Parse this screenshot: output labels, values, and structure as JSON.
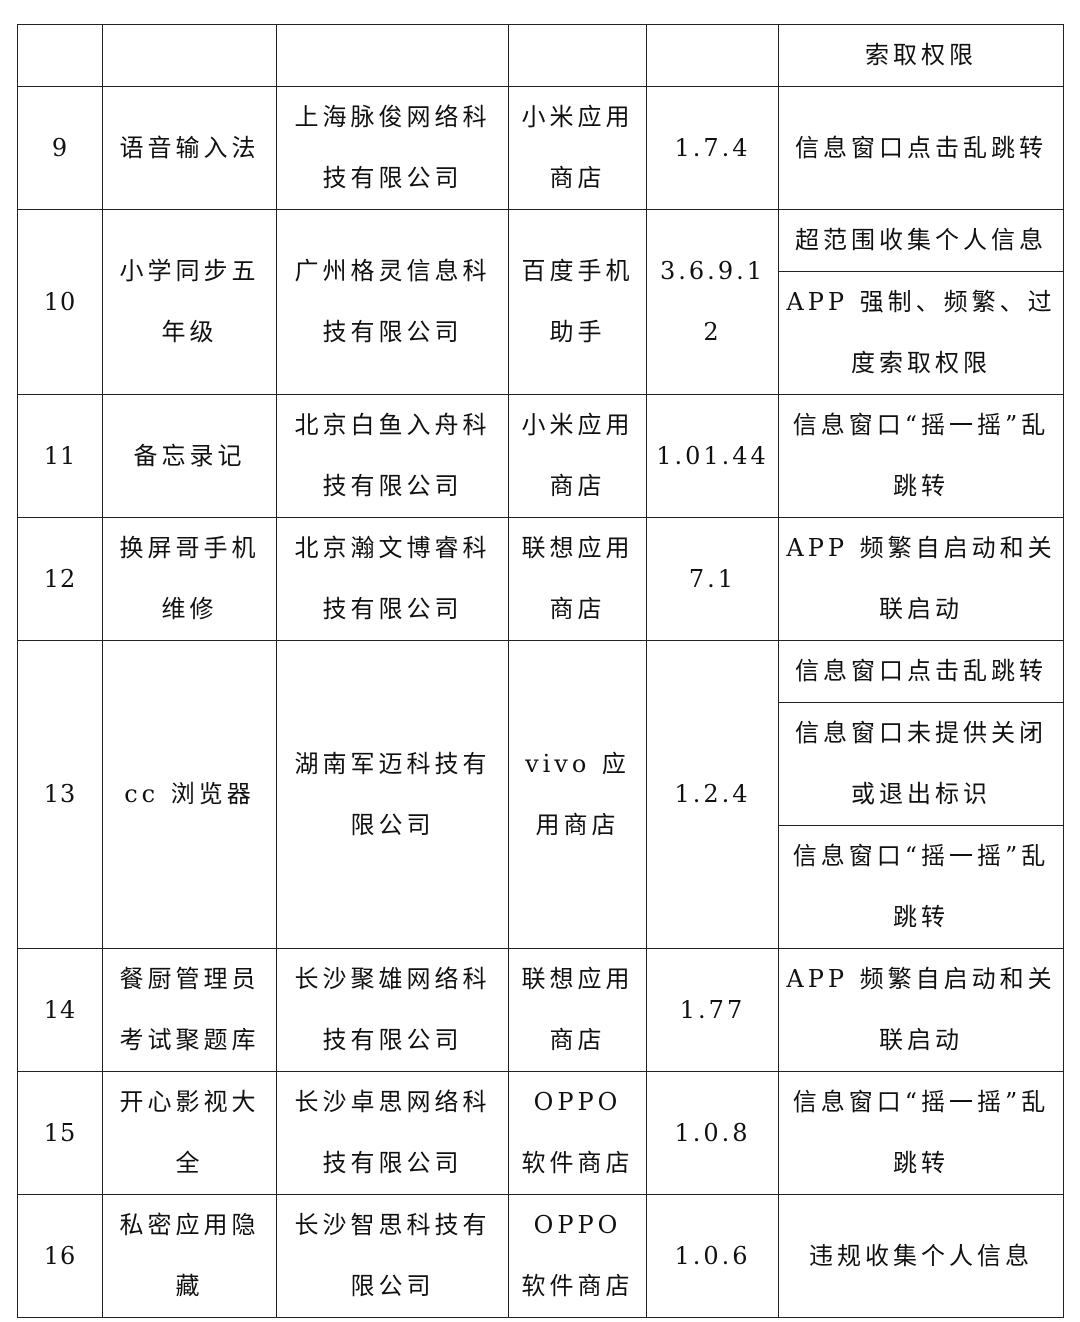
{
  "continuation_row": {
    "issues": [
      "索取权限"
    ]
  },
  "rows": [
    {
      "num": "9",
      "name": "语音输入法",
      "company": "上海脉俊网络科技有限公司",
      "store": "小米应用商店",
      "version": "1.7.4",
      "issues": [
        "信息窗口点击乱跳转"
      ]
    },
    {
      "num": "10",
      "name": "小学同步五年级",
      "company": "广州格灵信息科技有限公司",
      "store": "百度手机助手",
      "version": "3.6.9.12",
      "issues": [
        "超范围收集个人信息",
        "APP 强制、频繁、过度索取权限"
      ]
    },
    {
      "num": "11",
      "name": "备忘录记",
      "company": "北京白鱼入舟科技有限公司",
      "store": "小米应用商店",
      "version": "1.01.44",
      "issues": [
        "信息窗口“摇一摇”乱跳转"
      ]
    },
    {
      "num": "12",
      "name": "换屏哥手机维修",
      "company": "北京瀚文博睿科技有限公司",
      "store": "联想应用商店",
      "version": "7.1",
      "issues": [
        "APP 频繁自启动和关联启动"
      ]
    },
    {
      "num": "13",
      "name": "cc 浏览器",
      "company": "湖南军迈科技有限公司",
      "store": "vivo 应用商店",
      "version": "1.2.4",
      "issues": [
        "信息窗口点击乱跳转",
        "信息窗口未提供关闭或退出标识",
        "信息窗口“摇一摇”乱跳转"
      ]
    },
    {
      "num": "14",
      "name": "餐厨管理员考试聚题库",
      "company": "长沙聚雄网络科技有限公司",
      "store": "联想应用商店",
      "version": "1.77",
      "issues": [
        "APP 频繁自启动和关联启动"
      ]
    },
    {
      "num": "15",
      "name": "开心影视大全",
      "company": "长沙卓思网络科技有限公司",
      "store": "OPPO 软件商店",
      "version": "1.0.8",
      "issues": [
        "信息窗口“摇一摇”乱跳转"
      ]
    },
    {
      "num": "16",
      "name": "私密应用隐藏",
      "company": "长沙智思科技有限公司",
      "store": "OPPO 软件商店",
      "version": "1.0.6",
      "issues": [
        "违规收集个人信息"
      ]
    }
  ]
}
